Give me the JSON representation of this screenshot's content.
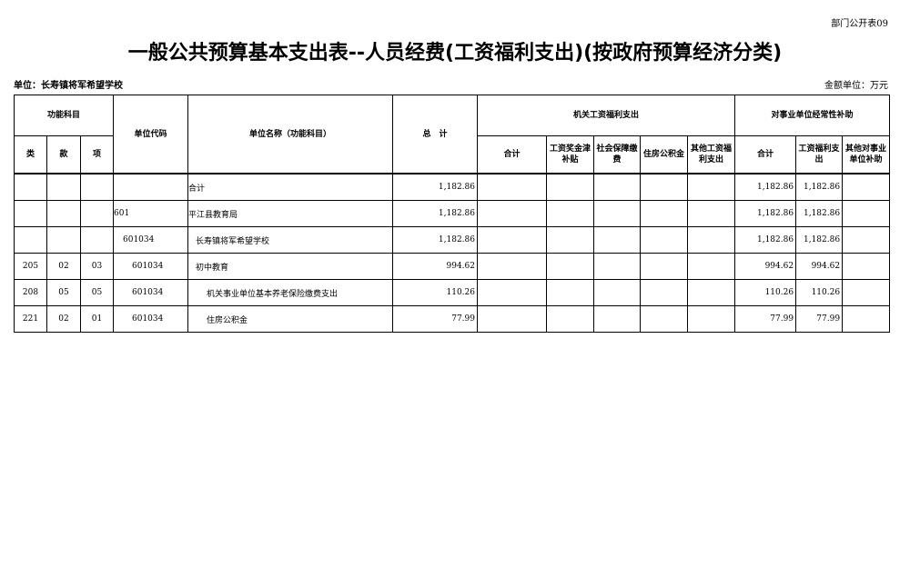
{
  "form_code": "部门公开表09",
  "title": "一般公共预算基本支出表--人员经费(工资福利支出)(按政府预算经济分类)",
  "unit_label": "单位：长寿镇将军希望学校",
  "money_unit": "金额单位：万元",
  "headers": {
    "func_subject": "功能科目",
    "lei": "类",
    "kuan": "款",
    "xiang": "项",
    "unit_code": "单位代码",
    "unit_name": "单位名称（功能科目）",
    "total": "总　计",
    "org_group": "机关工资福利支出",
    "org_sum": "合计",
    "org_wage": "工资奖金津补贴",
    "org_social": "社会保障缴费",
    "org_housing": "住房公积金",
    "org_other": "其他工资福利支出",
    "sub_group": "对事业单位经常性补助",
    "sub_sum": "合计",
    "sub_wage": "工资福利支出",
    "sub_other": "其他对事业单位补助"
  },
  "rows": [
    {
      "lei": "",
      "kuan": "",
      "xiang": "",
      "code": "",
      "name": "合计",
      "total": "1,182.86",
      "sub_sum": "1,182.86",
      "sub_wage": "1,182.86"
    },
    {
      "lei": "",
      "kuan": "",
      "xiang": "",
      "code": "601",
      "name": "平江县教育局",
      "total": "1,182.86",
      "sub_sum": "1,182.86",
      "sub_wage": "1,182.86"
    },
    {
      "lei": "",
      "kuan": "",
      "xiang": "",
      "code": "601034",
      "name": "长寿镇将军希望学校",
      "total": "1,182.86",
      "sub_sum": "1,182.86",
      "sub_wage": "1,182.86"
    },
    {
      "lei": "205",
      "kuan": "02",
      "xiang": "03",
      "code": "601034",
      "name": "初中教育",
      "total": "994.62",
      "sub_sum": "994.62",
      "sub_wage": "994.62"
    },
    {
      "lei": "208",
      "kuan": "05",
      "xiang": "05",
      "code": "601034",
      "name": "机关事业单位基本养老保险缴费支出",
      "total": "110.26",
      "sub_sum": "110.26",
      "sub_wage": "110.26"
    },
    {
      "lei": "221",
      "kuan": "02",
      "xiang": "01",
      "code": "601034",
      "name": "住房公积金",
      "total": "77.99",
      "sub_sum": "77.99",
      "sub_wage": "77.99"
    }
  ]
}
